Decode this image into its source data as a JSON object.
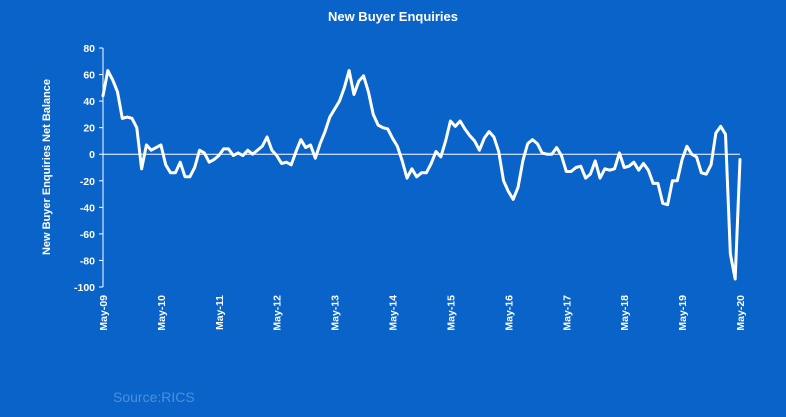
{
  "chart_data": {
    "type": "line",
    "title": "New Buyer Enquiries",
    "xlabel": "",
    "ylabel": "New Buyer Enquiries Net Balance",
    "ylim": [
      -100,
      80
    ],
    "yticks": [
      80,
      60,
      40,
      20,
      0,
      -20,
      -40,
      -60,
      -80,
      -100
    ],
    "xticks": [
      "May-09",
      "May-10",
      "May-11",
      "May-12",
      "May-13",
      "May-14",
      "May-15",
      "May-16",
      "May-17",
      "May-18",
      "May-19",
      "May-20"
    ],
    "grid": false,
    "zero_line": true,
    "line_color": "#ffffff",
    "background_color": "#0a63c9",
    "series": [
      {
        "name": "",
        "x_start": "May-09",
        "frequency": "monthly",
        "values": [
          44,
          63,
          56,
          47,
          27,
          28,
          27,
          20,
          -11,
          7,
          3,
          5,
          7,
          -8,
          -14,
          -14,
          -6,
          -17,
          -17,
          -10,
          3,
          1,
          -6,
          -4,
          -1,
          4,
          4,
          -1,
          1,
          -1,
          3,
          0,
          3,
          6,
          13,
          3,
          -1,
          -7,
          -6,
          -8,
          2,
          11,
          5,
          7,
          -3,
          8,
          17,
          28,
          34,
          40,
          50,
          63,
          45,
          55,
          59,
          47,
          30,
          22,
          20,
          19,
          12,
          6,
          -5,
          -18,
          -11,
          -17,
          -14,
          -14,
          -7,
          2,
          -2,
          10,
          25,
          21,
          25,
          19,
          14,
          10,
          3,
          12,
          17,
          13,
          2,
          -20,
          -28,
          -34,
          -25,
          -5,
          8,
          11,
          8,
          1,
          0,
          0,
          5,
          -1,
          -13,
          -13,
          -10,
          -9,
          -18,
          -15,
          -5,
          -18,
          -11,
          -12,
          -11,
          1,
          -10,
          -9,
          -6,
          -12,
          -7,
          -12,
          -22,
          -22,
          -37,
          -38,
          -20,
          -20,
          -4,
          6,
          0,
          -2,
          -14,
          -15,
          -8,
          16,
          21,
          15,
          -75,
          -94,
          -4
        ]
      }
    ]
  },
  "source_text": "Source:RICS"
}
